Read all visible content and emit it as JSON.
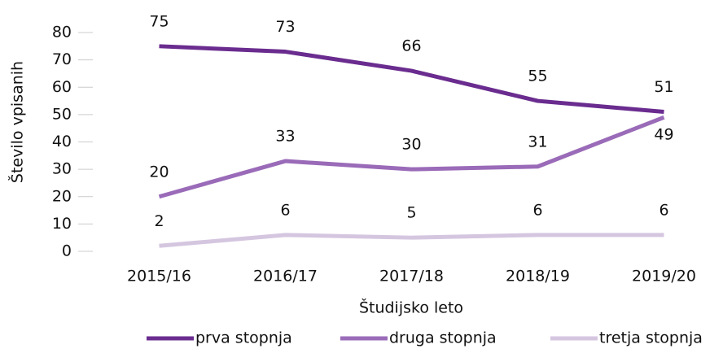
{
  "chart_data": {
    "type": "line",
    "categories": [
      "2015/16",
      "2016/17",
      "2017/18",
      "2018/19",
      "2019/20"
    ],
    "series": [
      {
        "name": "prva stopnja",
        "color": "#6a2c8f",
        "values": [
          75,
          73,
          66,
          55,
          51
        ]
      },
      {
        "name": "druga stopnja",
        "color": "#9a6bb8",
        "values": [
          20,
          33,
          30,
          31,
          49
        ]
      },
      {
        "name": "tretja stopnja",
        "color": "#d5c6e0",
        "values": [
          2,
          6,
          5,
          6,
          6
        ]
      }
    ],
    "ylim": [
      0,
      80
    ],
    "yticks": [
      0,
      10,
      20,
      30,
      40,
      50,
      60,
      70,
      80
    ],
    "y_label": "Število vpisanih",
    "x_label": "Študijsko leto",
    "grid": false,
    "legend": "bottom"
  }
}
